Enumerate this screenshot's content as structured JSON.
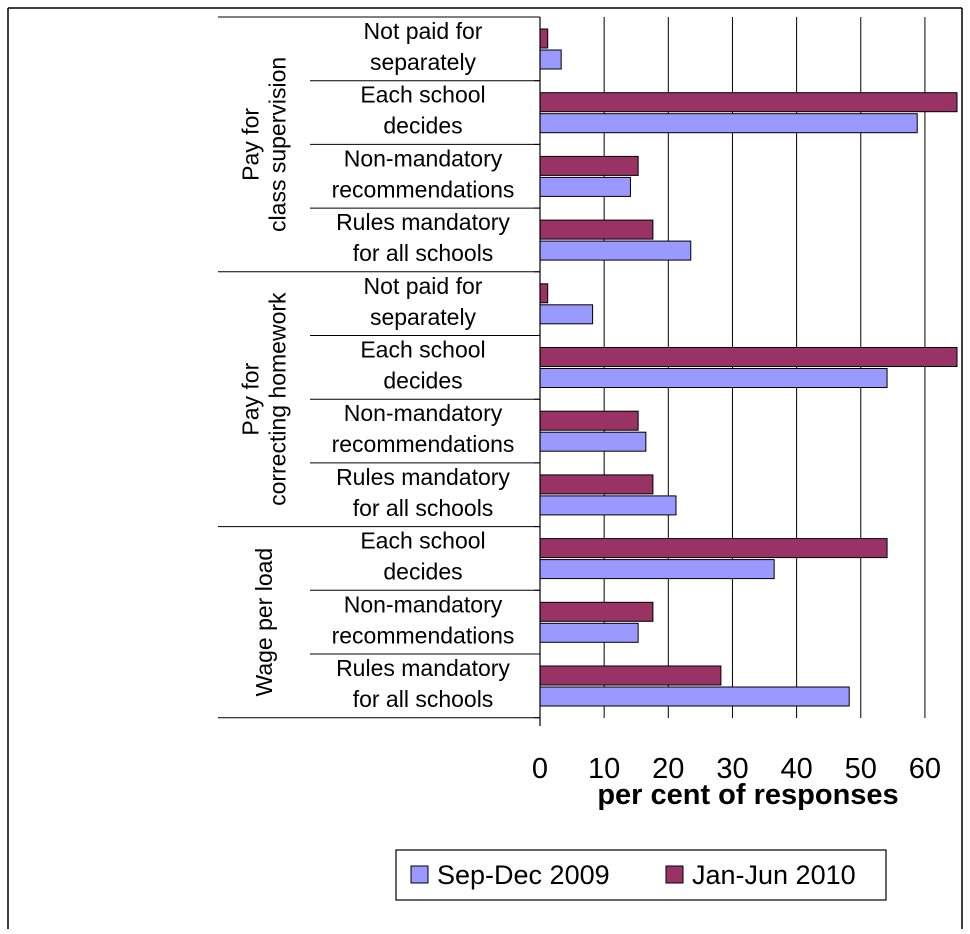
{
  "chart_data": {
    "type": "bar",
    "orientation": "horizontal",
    "xlabel": "per cent of responses",
    "xlim": [
      0,
      65
    ],
    "xticks": [
      0,
      10,
      20,
      30,
      40,
      50,
      60
    ],
    "grid": true,
    "legend_position": "bottom",
    "groups": [
      {
        "label": "Pay for class supervision",
        "categories": [
          {
            "lines": [
              "Not paid for",
              "separately"
            ],
            "values": [
              3.3,
              1.2
            ]
          },
          {
            "lines": [
              "Each school",
              "decides"
            ],
            "values": [
              58.8,
              66
            ]
          },
          {
            "lines": [
              "Non-mandatory",
              "recommendations"
            ],
            "values": [
              14.1,
              15.3
            ]
          },
          {
            "lines": [
              "Rules mandatory",
              "for all schools"
            ],
            "values": [
              23.5,
              17.6
            ]
          }
        ]
      },
      {
        "label": "Pay for correcting homework",
        "categories": [
          {
            "lines": [
              "Not paid for",
              "separately"
            ],
            "values": [
              8.2,
              1.2
            ]
          },
          {
            "lines": [
              "Each school",
              "decides"
            ],
            "values": [
              54.1,
              66
            ]
          },
          {
            "lines": [
              "Non-mandatory",
              "recommendations"
            ],
            "values": [
              16.5,
              15.3
            ]
          },
          {
            "lines": [
              "Rules mandatory",
              "for all schools"
            ],
            "values": [
              21.2,
              17.6
            ]
          }
        ]
      },
      {
        "label": "Wage per load",
        "categories": [
          {
            "lines": [
              "Each school",
              "decides"
            ],
            "values": [
              36.5,
              54.1
            ]
          },
          {
            "lines": [
              "Non-mandatory",
              "recommendations"
            ],
            "values": [
              15.3,
              17.6
            ]
          },
          {
            "lines": [
              "Rules mandatory",
              "for all schools"
            ],
            "values": [
              48.2,
              28.2
            ]
          }
        ]
      }
    ],
    "series": [
      {
        "name": "Sep-Dec 2009",
        "color": "#9999ff"
      },
      {
        "name": "Jan-Jun 2010",
        "color": "#993366"
      }
    ]
  }
}
